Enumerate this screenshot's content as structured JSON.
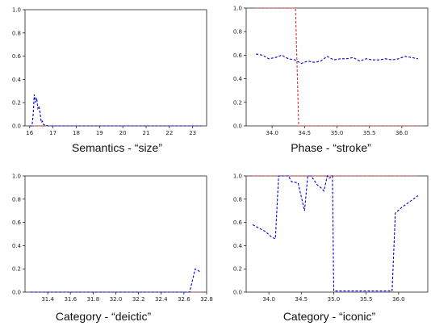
{
  "chart_data": [
    {
      "type": "line",
      "caption": "Semantics - “size”",
      "xlim": [
        15.8,
        23.6
      ],
      "ylim": [
        0,
        1
      ],
      "xticks": [
        "16",
        "17",
        "18",
        "19",
        "20",
        "21",
        "22",
        "23"
      ],
      "xtick_values": [
        16,
        17,
        18,
        19,
        20,
        21,
        22,
        23
      ],
      "yticks": [
        "0.0",
        "0.2",
        "0.4",
        "0.6",
        "0.8",
        "1.0"
      ],
      "series": [
        {
          "style": "dashed",
          "color": "#0000dd",
          "x": [
            16.0,
            16.1,
            16.15,
            16.2,
            16.25,
            16.3,
            16.35,
            16.4,
            16.45,
            16.5,
            16.55,
            16.6,
            16.7,
            16.8,
            17.0,
            18.0,
            19.0,
            20.0,
            21.0,
            22.0,
            23.0,
            23.4
          ],
          "y": [
            0.0,
            0.0,
            0.1,
            0.27,
            0.2,
            0.24,
            0.15,
            0.17,
            0.11,
            0.03,
            0.04,
            0.01,
            0.005,
            0.0,
            0.0,
            0.0,
            0.0,
            0.0,
            0.0,
            0.0,
            0.0,
            0.0
          ]
        },
        {
          "style": "dashed",
          "color": "#e03030",
          "x": [
            16.0,
            23.4
          ],
          "y": [
            0.0,
            0.0
          ]
        }
      ]
    },
    {
      "type": "line",
      "caption": "Phase - “stroke”",
      "xlim": [
        33.6,
        36.4
      ],
      "ylim": [
        0,
        1
      ],
      "xticks": [
        "34.0",
        "34.5",
        "35.0",
        "35.5",
        "36.0"
      ],
      "xtick_values": [
        34.0,
        34.5,
        35.0,
        35.5,
        36.0
      ],
      "yticks": [
        "0.0",
        "0.2",
        "0.4",
        "0.6",
        "0.8",
        "1.0"
      ],
      "series": [
        {
          "style": "dashed",
          "color": "#0000dd",
          "x": [
            33.75,
            33.85,
            33.95,
            34.05,
            34.15,
            34.25,
            34.35,
            34.45,
            34.55,
            34.65,
            34.75,
            34.85,
            34.95,
            35.05,
            35.15,
            35.25,
            35.35,
            35.45,
            35.55,
            35.65,
            35.75,
            35.85,
            35.95,
            36.05,
            36.15,
            36.25
          ],
          "y": [
            0.61,
            0.6,
            0.57,
            0.58,
            0.6,
            0.57,
            0.56,
            0.53,
            0.55,
            0.54,
            0.55,
            0.59,
            0.56,
            0.57,
            0.57,
            0.58,
            0.55,
            0.57,
            0.56,
            0.56,
            0.57,
            0.56,
            0.57,
            0.59,
            0.58,
            0.57
          ]
        },
        {
          "style": "dashed",
          "color": "#e03030",
          "x": [
            33.75,
            34.36,
            34.41,
            36.3
          ],
          "y": [
            1.0,
            1.0,
            0.0,
            0.0
          ]
        }
      ]
    },
    {
      "type": "line",
      "caption": "Category - “deictic”",
      "xlim": [
        31.2,
        32.8
      ],
      "ylim": [
        0,
        1
      ],
      "xticks": [
        "31.4",
        "31.6",
        "31.8",
        "32.0",
        "32.2",
        "32.4",
        "32.6",
        "32.8"
      ],
      "xtick_values": [
        31.4,
        31.6,
        31.8,
        32.0,
        32.2,
        32.4,
        32.6,
        32.8
      ],
      "yticks": [
        "0.0",
        "0.2",
        "0.4",
        "0.6",
        "0.8",
        "1.0"
      ],
      "series": [
        {
          "style": "dashed",
          "color": "#0000dd",
          "x": [
            31.25,
            31.5,
            32.0,
            32.5,
            32.65,
            32.7,
            32.75
          ],
          "y": [
            0.0,
            0.0,
            0.0,
            0.0,
            0.0,
            0.2,
            0.17
          ]
        },
        {
          "style": "dashed",
          "color": "#e03030",
          "x": [
            31.25,
            32.75
          ],
          "y": [
            0.0,
            0.0
          ]
        }
      ]
    },
    {
      "type": "line",
      "caption": "Category - “iconic”",
      "xlim": [
        33.65,
        36.45
      ],
      "ylim": [
        0,
        1
      ],
      "xticks": [
        "34.0",
        "34.5",
        "35.0",
        "35.5",
        "36.0"
      ],
      "xtick_values": [
        34.0,
        34.5,
        35.0,
        35.5,
        36.0
      ],
      "yticks": [
        "0.0",
        "0.2",
        "0.4",
        "0.6",
        "0.8",
        "1.0"
      ],
      "series": [
        {
          "style": "dashed",
          "color": "#0000dd",
          "x": [
            33.75,
            33.85,
            33.95,
            34.05,
            34.1,
            34.15,
            34.3,
            34.35,
            34.45,
            34.55,
            34.6,
            34.65,
            34.75,
            34.8,
            34.85,
            34.9,
            34.93,
            34.98,
            35.0,
            35.1,
            35.5,
            35.9,
            35.95,
            36.05,
            36.3
          ],
          "y": [
            0.58,
            0.55,
            0.52,
            0.47,
            0.46,
            1.0,
            1.0,
            0.95,
            0.94,
            0.7,
            1.0,
            1.0,
            0.92,
            0.9,
            0.87,
            1.0,
            0.98,
            1.0,
            0.01,
            0.01,
            0.01,
            0.01,
            0.68,
            0.73,
            0.83
          ]
        },
        {
          "style": "dashed",
          "color": "#e03030",
          "x": [
            33.75,
            36.3
          ],
          "y": [
            1.0,
            1.0
          ]
        }
      ]
    }
  ]
}
